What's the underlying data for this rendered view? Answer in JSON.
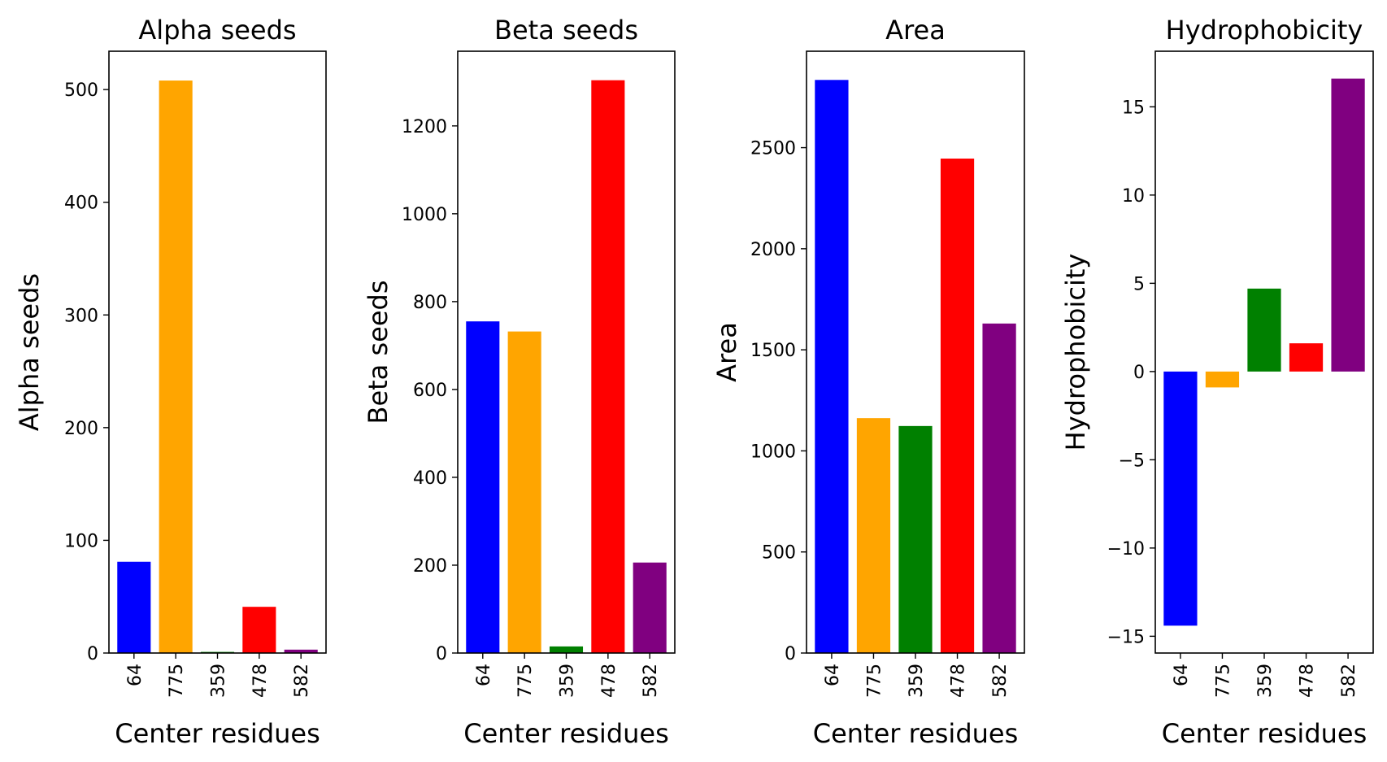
{
  "chart_data": [
    {
      "type": "bar",
      "title": "Alpha seeds",
      "xlabel": "Center residues",
      "ylabel": "Alpha seeds",
      "categories": [
        "64",
        "775",
        "359",
        "478",
        "582"
      ],
      "values": [
        81,
        508,
        1,
        41,
        3
      ],
      "colors": [
        "#0000ff",
        "#ffa500",
        "#008000",
        "#ff0000",
        "#800080"
      ],
      "ylim": [
        0,
        534
      ],
      "yticks": [
        0,
        100,
        200,
        300,
        400,
        500
      ],
      "ytick_labels": [
        "0",
        "100",
        "200",
        "300",
        "400",
        "500"
      ],
      "grid": false,
      "legend": "none"
    },
    {
      "type": "bar",
      "title": "Beta seeds",
      "xlabel": "Center residues",
      "ylabel": "Beta seeds",
      "categories": [
        "64",
        "775",
        "359",
        "478",
        "582"
      ],
      "values": [
        755,
        732,
        15,
        1304,
        206
      ],
      "colors": [
        "#0000ff",
        "#ffa500",
        "#008000",
        "#ff0000",
        "#800080"
      ],
      "ylim": [
        0,
        1370
      ],
      "yticks": [
        0,
        200,
        400,
        600,
        800,
        1000,
        1200
      ],
      "ytick_labels": [
        "0",
        "200",
        "400",
        "600",
        "800",
        "1000",
        "1200"
      ],
      "grid": false,
      "legend": "none"
    },
    {
      "type": "bar",
      "title": "Area",
      "xlabel": "Center residues",
      "ylabel": "Area",
      "categories": [
        "64",
        "775",
        "359",
        "478",
        "582"
      ],
      "values": [
        2835,
        1162,
        1123,
        2446,
        1630
      ],
      "colors": [
        "#0000ff",
        "#ffa500",
        "#008000",
        "#ff0000",
        "#800080"
      ],
      "ylim": [
        0,
        2977
      ],
      "yticks": [
        0,
        500,
        1000,
        1500,
        2000,
        2500
      ],
      "ytick_labels": [
        "0",
        "500",
        "1000",
        "1500",
        "2000",
        "2500"
      ],
      "grid": false,
      "legend": "none"
    },
    {
      "type": "bar",
      "title": "Hydrophobicity",
      "xlabel": "Center residues",
      "ylabel": "Hydrophobicity",
      "categories": [
        "64",
        "775",
        "359",
        "478",
        "582"
      ],
      "values": [
        -14.4,
        -0.9,
        4.7,
        1.6,
        16.6
      ],
      "colors": [
        "#0000ff",
        "#ffa500",
        "#008000",
        "#ff0000",
        "#800080"
      ],
      "ylim": [
        -15.95,
        18.15
      ],
      "yticks": [
        -15,
        -10,
        -5,
        0,
        5,
        10,
        15
      ],
      "ytick_labels": [
        "−15",
        "−10",
        "−5",
        "0",
        "5",
        "10",
        "15"
      ],
      "grid": false,
      "legend": "none"
    }
  ]
}
